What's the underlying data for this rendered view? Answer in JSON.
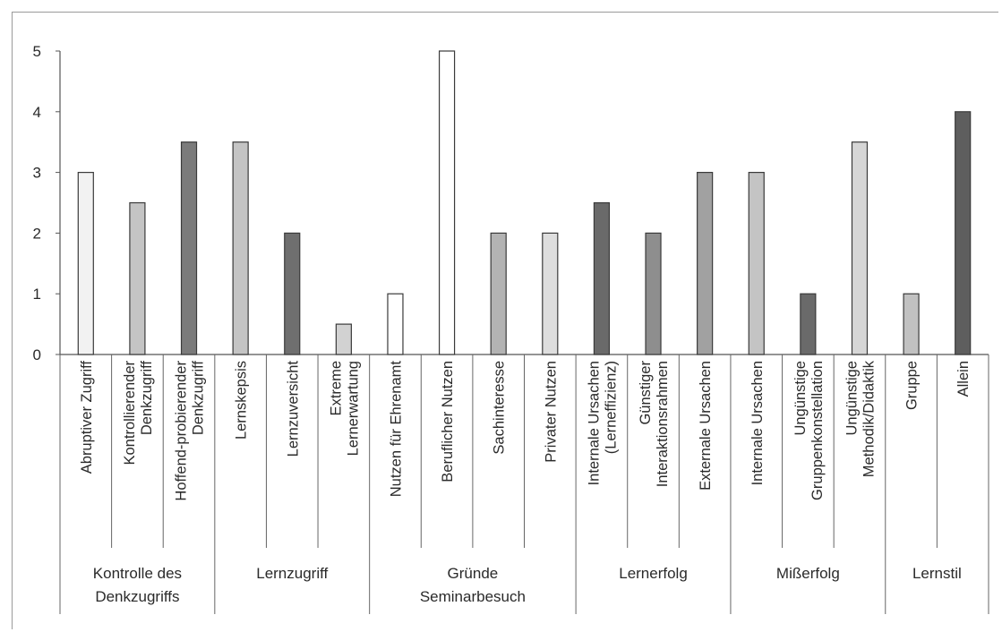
{
  "chart_data": {
    "type": "bar",
    "title": "",
    "xlabel": "",
    "ylabel": "",
    "ylim": [
      0,
      5
    ],
    "yticks": [
      "0",
      "1",
      "2",
      "3",
      "4",
      "5"
    ],
    "grid": false,
    "legend": "none",
    "categories": [
      "Abruptiver Zugriff",
      "Kontrollierender Denkzugriff",
      "Hoffend-probierender Denkzugriff",
      "Lernskepsis",
      "Lernzuversicht",
      "Extreme Lernerwartung",
      "Nutzen für Ehrenamt",
      "Beruflicher Nutzen",
      "Sachinteresse",
      "Privater Nutzen",
      "Internale Ursachen (Lerneffizienz)",
      "Günstiger Interaktionsrahmen",
      "Externale Ursachen",
      "Internale Ursachen",
      "Ungünstige Gruppenkonstellation",
      "Ungünstige Methodik/Didaktik",
      "Gruppe",
      "Allein"
    ],
    "category_lines": [
      [
        "Abruptiver Zugriff"
      ],
      [
        "Kontrollierender",
        "Denkzugriff"
      ],
      [
        "Hoffend-probierender",
        "Denkzugriff"
      ],
      [
        "Lernskepsis"
      ],
      [
        "Lernzuversicht"
      ],
      [
        "Extreme",
        "Lernerwartung"
      ],
      [
        "Nutzen für Ehrenamt"
      ],
      [
        "Beruflicher Nutzen"
      ],
      [
        "Sachinteresse"
      ],
      [
        "Privater Nutzen"
      ],
      [
        "Internale Ursachen",
        "(Lerneffizienz)"
      ],
      [
        "Günstiger",
        "Interaktionsrahmen"
      ],
      [
        "Externale Ursachen"
      ],
      [
        "Internale Ursachen"
      ],
      [
        "Ungünstige",
        "Gruppenkonstellation"
      ],
      [
        "Ungünstige",
        "Methodik/Didaktik"
      ],
      [
        "Gruppe"
      ],
      [
        "Allein"
      ]
    ],
    "values": [
      3,
      2.5,
      3.5,
      3.5,
      2,
      0.5,
      1,
      5,
      2,
      2,
      2.5,
      2,
      3,
      3,
      1,
      3.5,
      1,
      4
    ],
    "bar_colors": [
      "#f2f2f2",
      "#c4c4c4",
      "#7b7b7b",
      "#c4c4c4",
      "#6f6f6f",
      "#d2d2d2",
      "#ffffff",
      "#ffffff",
      "#b3b3b3",
      "#dedede",
      "#6a6a6a",
      "#8e8e8e",
      "#a1a1a1",
      "#c4c4c4",
      "#6a6a6a",
      "#d6d6d6",
      "#c1c1c1",
      "#5e5e5e"
    ],
    "groups": [
      {
        "lines": [
          "Kontrolle des",
          "Denkzugriffs"
        ],
        "count": 3
      },
      {
        "lines": [
          "Lernzugriff"
        ],
        "count": 3
      },
      {
        "lines": [
          "Gründe",
          "Seminarbesuch"
        ],
        "count": 4
      },
      {
        "lines": [
          "Lernerfolg"
        ],
        "count": 3
      },
      {
        "lines": [
          "Mißerfolg"
        ],
        "count": 3
      },
      {
        "lines": [
          "Lernstil"
        ],
        "count": 2
      }
    ]
  }
}
